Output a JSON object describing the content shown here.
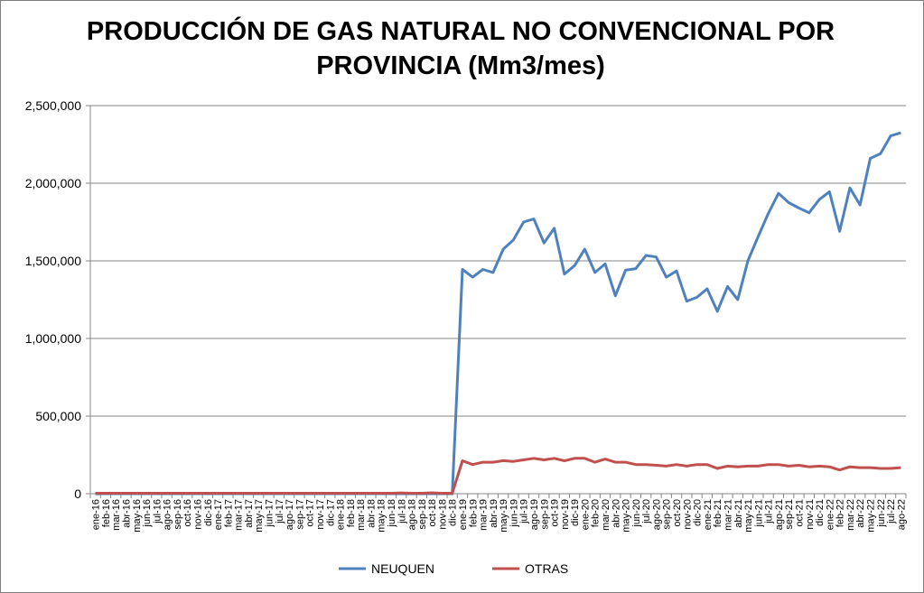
{
  "chart_data": {
    "type": "line",
    "title_line1": "PRODUCCIÓN DE GAS NATURAL NO CONVENCIONAL POR",
    "title_line2": "PROVINCIA (Mm3/mes)",
    "xlabel": "",
    "ylabel": "",
    "ylim": [
      0,
      2500000
    ],
    "yticks": [
      "0",
      "500,000",
      "1,000,000",
      "1,500,000",
      "2,000,000",
      "2,500,000"
    ],
    "grid": "horizontal",
    "legend_position": "bottom",
    "x": [
      "ene-16",
      "feb-16",
      "mar-16",
      "abr-16",
      "may-16",
      "jun-16",
      "jul-16",
      "ago-16",
      "sep-16",
      "oct-16",
      "nov-16",
      "dic-16",
      "ene-17",
      "feb-17",
      "mar-17",
      "abr-17",
      "may-17",
      "jun-17",
      "jul-17",
      "ago-17",
      "sep-17",
      "oct-17",
      "nov-17",
      "dic-17",
      "ene-18",
      "feb-18",
      "mar-18",
      "abr-18",
      "may-18",
      "jun-18",
      "jul-18",
      "ago-18",
      "sep-18",
      "oct-18",
      "nov-18",
      "dic-18",
      "ene-19",
      "feb-19",
      "mar-19",
      "abr-19",
      "may-19",
      "jun-19",
      "jul-19",
      "ago-19",
      "sep-19",
      "oct-19",
      "nov-19",
      "dic-19",
      "ene-20",
      "feb-20",
      "mar-20",
      "abr-20",
      "may-20",
      "jun-20",
      "jul-20",
      "ago-20",
      "sep-20",
      "oct-20",
      "nov-20",
      "dic-20",
      "ene-21",
      "feb-21",
      "mar-21",
      "abr-21",
      "may-21",
      "jun-21",
      "jul-21",
      "ago-21",
      "sep-21",
      "oct-21",
      "nov-21",
      "dic-21",
      "ene-22",
      "feb-22",
      "mar-22",
      "abr-22",
      "may-22",
      "jun-22",
      "jul-22",
      "ago-22"
    ],
    "series": [
      {
        "name": "NEUQUEN",
        "color": "#4f81bd",
        "values": [
          0,
          0,
          0,
          0,
          0,
          0,
          0,
          0,
          0,
          0,
          0,
          0,
          0,
          0,
          0,
          0,
          0,
          0,
          0,
          0,
          0,
          0,
          0,
          0,
          0,
          0,
          0,
          0,
          0,
          0,
          0,
          0,
          0,
          0,
          0,
          0,
          1445000,
          1395000,
          1445000,
          1425000,
          1575000,
          1635000,
          1750000,
          1770000,
          1615000,
          1710000,
          1415000,
          1470000,
          1575000,
          1425000,
          1480000,
          1275000,
          1440000,
          1450000,
          1535000,
          1525000,
          1395000,
          1435000,
          1240000,
          1265000,
          1320000,
          1175000,
          1335000,
          1250000,
          1500000,
          1655000,
          1805000,
          1935000,
          1875000,
          1840000,
          1810000,
          1895000,
          1945000,
          1690000,
          1970000,
          1860000,
          2160000,
          2190000,
          2305000,
          2325000
        ]
      },
      {
        "name": "OTRAS",
        "color": "#c0504d",
        "values": [
          3000,
          3000,
          3000,
          3000,
          3000,
          3000,
          3000,
          3000,
          3000,
          3000,
          3000,
          3000,
          3000,
          3000,
          3000,
          3000,
          3000,
          3000,
          3000,
          3000,
          3000,
          3000,
          3000,
          3000,
          3000,
          3000,
          3000,
          3000,
          3000,
          3000,
          5000,
          3000,
          3000,
          6000,
          3000,
          3000,
          212000,
          188000,
          203000,
          203000,
          213000,
          208000,
          218000,
          228000,
          218000,
          228000,
          212000,
          228000,
          228000,
          203000,
          223000,
          203000,
          203000,
          188000,
          188000,
          183000,
          178000,
          188000,
          178000,
          188000,
          188000,
          163000,
          178000,
          173000,
          178000,
          178000,
          188000,
          188000,
          178000,
          183000,
          173000,
          178000,
          173000,
          153000,
          173000,
          168000,
          168000,
          163000,
          163000,
          168000
        ]
      }
    ]
  }
}
